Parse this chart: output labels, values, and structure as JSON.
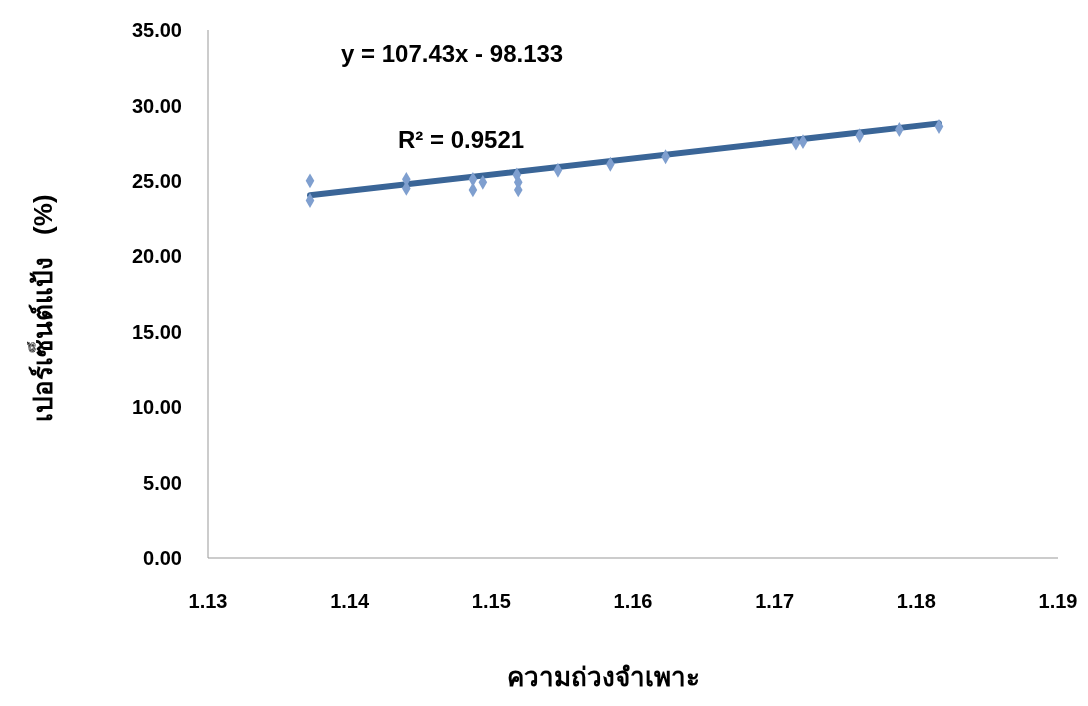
{
  "chart_data": {
    "type": "scatter",
    "xlabel": "ความถ่วงจำเพาะ",
    "ylabel": "เปอร์เซ็นต์แป้ง   (%)",
    "annotations": [
      "y = 107.43x - 98.133",
      "R² = 0.9521"
    ],
    "xlim": [
      1.13,
      1.19
    ],
    "xticks": [
      1.13,
      1.14,
      1.15,
      1.16,
      1.17,
      1.18,
      1.19
    ],
    "ylim": [
      0,
      35
    ],
    "yticks": [
      {
        "value": 0,
        "label": "0.00"
      },
      {
        "value": 5,
        "label": "5.00"
      },
      {
        "value": 10,
        "label": "10.00"
      },
      {
        "value": 15,
        "label": "15.00"
      },
      {
        "value": 20,
        "label": "20.00"
      },
      {
        "value": 25,
        "label": "25.00"
      },
      {
        "value": 30,
        "label": "30.00"
      },
      {
        "value": 35,
        "label": "35.00"
      }
    ],
    "grid": false,
    "series": [
      {
        "marker": "diamond",
        "color": "#7f9fcf",
        "x": [
          1.1372,
          1.1372,
          1.144,
          1.144,
          1.1487,
          1.1487,
          1.1494,
          1.1518,
          1.1519,
          1.1519,
          1.1547,
          1.1584,
          1.1623,
          1.1715,
          1.172,
          1.176,
          1.1788,
          1.1816
        ],
        "values": [
          25.0,
          23.7,
          25.1,
          24.5,
          25.1,
          24.4,
          24.9,
          25.4,
          24.9,
          24.4,
          25.7,
          26.1,
          26.6,
          27.5,
          27.6,
          28.0,
          28.4,
          28.6
        ]
      },
      {
        "type": "line",
        "color": "#3a6597",
        "line_style": "solid",
        "x": [
          1.1372,
          1.1816
        ],
        "values": [
          24.04,
          28.81
        ]
      }
    ]
  }
}
